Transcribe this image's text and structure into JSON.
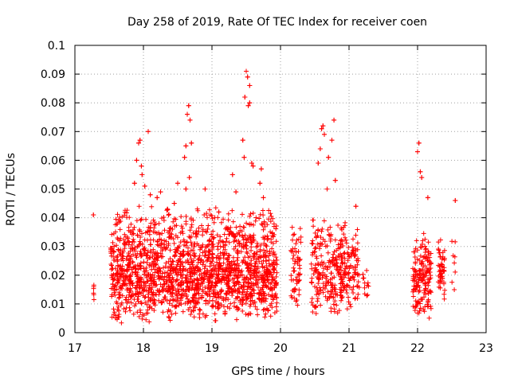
{
  "chart_data": {
    "type": "scatter",
    "title": "Day 258 of 2019, Rate Of TEC Index for receiver coen",
    "xlabel": "GPS time / hours",
    "ylabel": "ROTI / TECUs",
    "xlim": [
      17,
      23
    ],
    "ylim": [
      0,
      0.1
    ],
    "x_ticks": [
      17,
      18,
      19,
      20,
      21,
      22,
      23
    ],
    "x_tick_labels": [
      "17",
      "18",
      "19",
      "20",
      "21",
      "22",
      "23"
    ],
    "y_ticks": [
      0,
      0.01,
      0.02,
      0.03,
      0.04,
      0.05,
      0.06,
      0.07,
      0.08,
      0.09,
      0.1
    ],
    "y_tick_labels": [
      "0",
      "0.01",
      "0.02",
      "0.03",
      "0.04",
      "0.05",
      "0.06",
      "0.07",
      "0.08",
      "0.09",
      "0.1"
    ],
    "grid": true,
    "marker": "+",
    "marker_color": "#ff0000",
    "series": [
      {
        "name": "ROTI",
        "clusters": [
          {
            "x_range": [
              17.27,
              17.28
            ],
            "y_range": [
              0.009,
              0.02
            ],
            "count": 6
          },
          {
            "x_range": [
              17.52,
              19.95
            ],
            "y_range": [
              0.003,
              0.035
            ],
            "count": 1500
          },
          {
            "x_range": [
              17.55,
              19.95
            ],
            "y_range": [
              0.025,
              0.045
            ],
            "count": 300
          },
          {
            "x_range": [
              20.15,
              20.3
            ],
            "y_range": [
              0.005,
              0.04
            ],
            "count": 60
          },
          {
            "x_range": [
              20.45,
              21.15
            ],
            "y_range": [
              0.004,
              0.04
            ],
            "count": 330
          },
          {
            "x_range": [
              21.2,
              21.3
            ],
            "y_range": [
              0.01,
              0.025
            ],
            "count": 12
          },
          {
            "x_range": [
              21.93,
              22.2
            ],
            "y_range": [
              0.004,
              0.035
            ],
            "count": 170
          },
          {
            "x_range": [
              22.3,
              22.4
            ],
            "y_range": [
              0.008,
              0.035
            ],
            "count": 50
          },
          {
            "x_range": [
              22.5,
              22.55
            ],
            "y_range": [
              0.007,
              0.037
            ],
            "count": 8
          }
        ],
        "points": [
          [
            17.27,
            0.041
          ],
          [
            17.87,
            0.052
          ],
          [
            17.9,
            0.06
          ],
          [
            17.93,
            0.066
          ],
          [
            17.95,
            0.067
          ],
          [
            17.97,
            0.058
          ],
          [
            17.98,
            0.055
          ],
          [
            18.02,
            0.051
          ],
          [
            18.07,
            0.07
          ],
          [
            18.1,
            0.048
          ],
          [
            18.2,
            0.047
          ],
          [
            18.25,
            0.049
          ],
          [
            18.35,
            0.043
          ],
          [
            18.45,
            0.045
          ],
          [
            18.5,
            0.052
          ],
          [
            18.6,
            0.061
          ],
          [
            18.62,
            0.065
          ],
          [
            18.64,
            0.076
          ],
          [
            18.66,
            0.079
          ],
          [
            18.68,
            0.074
          ],
          [
            18.7,
            0.066
          ],
          [
            18.67,
            0.054
          ],
          [
            18.62,
            0.05
          ],
          [
            18.9,
            0.05
          ],
          [
            19.1,
            0.042
          ],
          [
            19.3,
            0.055
          ],
          [
            19.35,
            0.049
          ],
          [
            19.45,
            0.067
          ],
          [
            19.47,
            0.061
          ],
          [
            19.48,
            0.082
          ],
          [
            19.5,
            0.091
          ],
          [
            19.52,
            0.089
          ],
          [
            19.55,
            0.086
          ],
          [
            19.53,
            0.079
          ],
          [
            19.55,
            0.08
          ],
          [
            19.58,
            0.059
          ],
          [
            19.6,
            0.058
          ],
          [
            19.7,
            0.052
          ],
          [
            19.72,
            0.057
          ],
          [
            19.75,
            0.047
          ],
          [
            20.55,
            0.059
          ],
          [
            20.58,
            0.064
          ],
          [
            20.6,
            0.071
          ],
          [
            20.62,
            0.072
          ],
          [
            20.64,
            0.069
          ],
          [
            20.7,
            0.061
          ],
          [
            20.75,
            0.067
          ],
          [
            20.78,
            0.074
          ],
          [
            20.68,
            0.05
          ],
          [
            20.8,
            0.053
          ],
          [
            21.1,
            0.044
          ],
          [
            22.0,
            0.063
          ],
          [
            22.02,
            0.066
          ],
          [
            22.04,
            0.056
          ],
          [
            22.06,
            0.054
          ],
          [
            22.15,
            0.047
          ],
          [
            22.55,
            0.046
          ]
        ]
      }
    ]
  }
}
